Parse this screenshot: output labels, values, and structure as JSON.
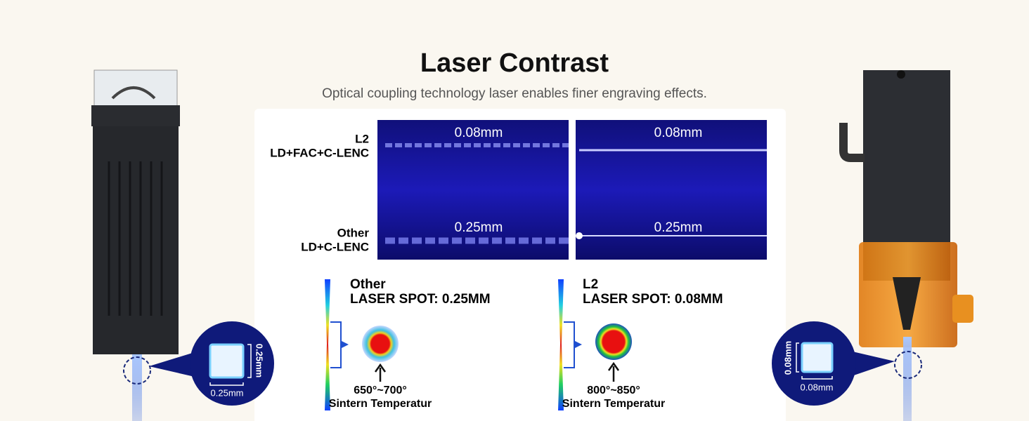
{
  "header": {
    "title": "Laser Contrast",
    "subtitle": "Optical coupling technology laser enables finer engraving effects."
  },
  "rows": [
    {
      "name": "L2",
      "spec": "LD+FAC+C-LENC",
      "beams": [
        "0.08mm",
        "0.08mm"
      ]
    },
    {
      "name": "Other",
      "spec": "LD+C-LENC",
      "beams": [
        "0.25mm",
        "0.25mm"
      ]
    }
  ],
  "spots": [
    {
      "name": "Other",
      "spot": "LASER SPOT: 0.25MM",
      "temperature": "650°~700°",
      "caption": "Sintern Temperatur"
    },
    {
      "name": "L2",
      "spot": "LASER SPOT: 0.08MM",
      "temperature": "800°~850°",
      "caption": "Sintern Temperatur"
    }
  ],
  "callouts": [
    {
      "height": "0.25mm",
      "width": "0.25mm"
    },
    {
      "height": "0.08mm",
      "width": "0.08mm"
    }
  ]
}
